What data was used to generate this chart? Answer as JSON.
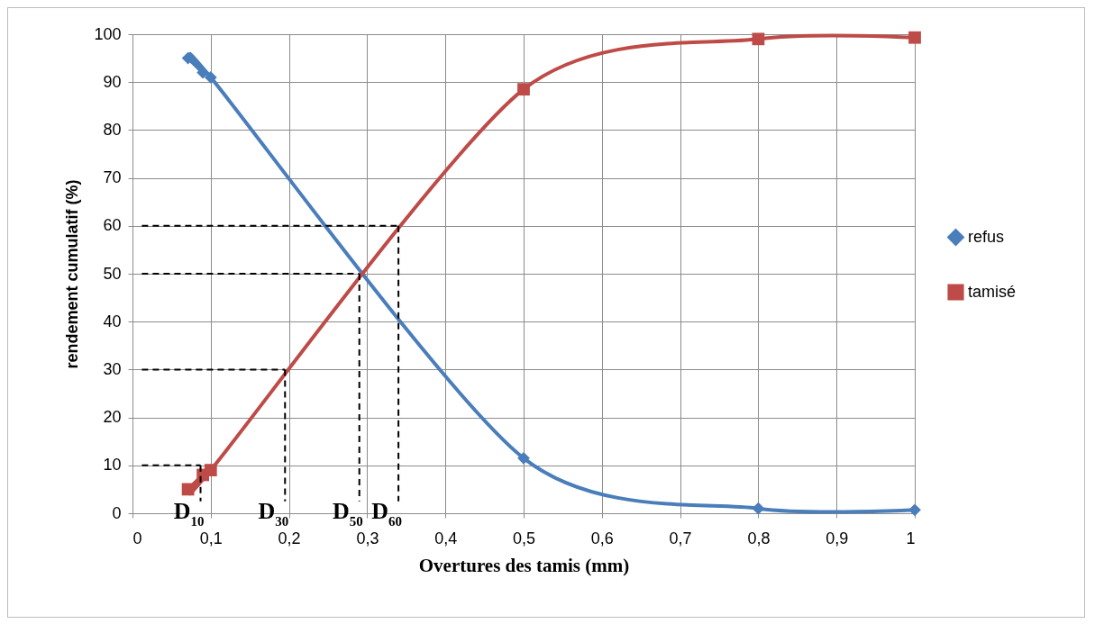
{
  "chart_data": {
    "type": "line",
    "xlabel": "Overtures des tamis (mm)",
    "ylabel": "rendement cumulatif (%)",
    "xlim": [
      0,
      1
    ],
    "ylim": [
      0,
      100
    ],
    "xticks": [
      0,
      {
        "value": 0.1,
        "label": "0,1"
      },
      {
        "value": 0.2,
        "label": "0,2"
      },
      {
        "value": 0.3,
        "label": "0,3"
      },
      {
        "value": 0.4,
        "label": "0,4"
      },
      {
        "value": 0.5,
        "label": "0,5"
      },
      {
        "value": 0.6,
        "label": "0,6"
      },
      {
        "value": 0.7,
        "label": "0,7"
      },
      {
        "value": 0.8,
        "label": "0,8"
      },
      {
        "value": 0.9,
        "label": "0,9"
      },
      1
    ],
    "yticks": [
      0,
      10,
      20,
      30,
      40,
      50,
      60,
      70,
      80,
      90,
      100
    ],
    "grid": true,
    "legend": "right",
    "line_style": "solid",
    "x": [
      0.071,
      0.09,
      0.1,
      0.5,
      0.8,
      1
    ],
    "series": [
      {
        "name": "refus",
        "color": "#4a7ebb",
        "marker": "diamond",
        "values": [
          95,
          92,
          91,
          11.5,
          1,
          0.7
        ]
      },
      {
        "name": "tamisé",
        "color": "#be4b48",
        "marker": "square",
        "values": [
          5,
          8,
          9,
          88.5,
          99,
          99.3
        ]
      }
    ],
    "annotations": [
      {
        "text": "D$_{10}$",
        "x": 0.087,
        "y": 10
      },
      {
        "text": "D$_{30}$",
        "x": 0.195,
        "y": 30
      },
      {
        "text": "D$_{50}$",
        "x": 0.29,
        "y": 50
      },
      {
        "text": "D$_{60}$",
        "x": 0.34,
        "y": 60
      }
    ]
  }
}
